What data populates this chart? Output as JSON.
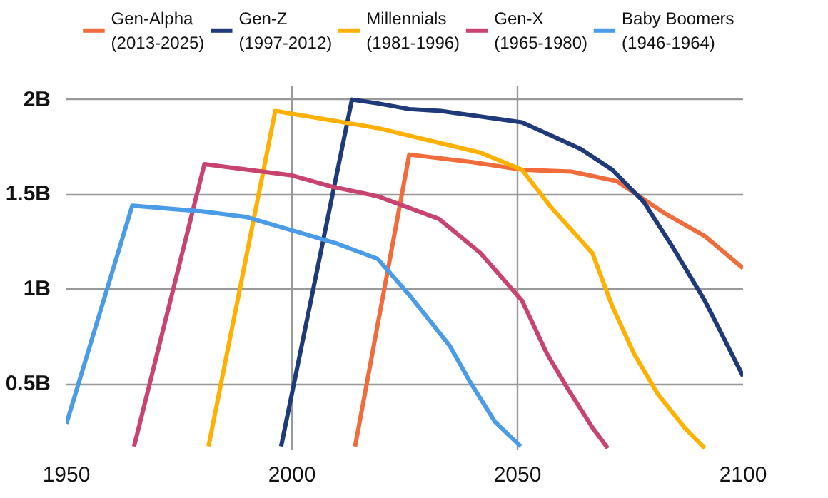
{
  "chart_data": {
    "type": "line",
    "xlim": [
      1950,
      2100
    ],
    "ylim": [
      0.15,
      2.07
    ],
    "xticks": [
      1950,
      2000,
      2050,
      2100
    ],
    "yticks": [
      {
        "value": 0.5,
        "label": "0.5B"
      },
      {
        "value": 1,
        "label": "1B"
      },
      {
        "value": 1.5,
        "label": "1.5B"
      },
      {
        "value": 2,
        "label": "2B"
      }
    ],
    "grid": true,
    "legend": "top",
    "line_style": "solid",
    "marker": "none",
    "series": [
      {
        "name": "Gen-Alpha\n(2013-2025)",
        "color": "#f26b3a",
        "x": [
          2014,
          2026,
          2040,
          2051,
          2062,
          2072,
          2082.6,
          2091.5,
          2100
        ],
        "values": [
          0.17,
          1.71,
          1.67,
          1.63,
          1.62,
          1.57,
          1.4,
          1.28,
          1.11
        ]
      },
      {
        "name": "Gen-Z\n(1997-2012)",
        "color": "#1f3a7a",
        "x": [
          1997.6,
          2013.3,
          2019,
          2026,
          2033,
          2051,
          2064,
          2071,
          2078,
          2084.7,
          2091.5,
          2100
        ],
        "values": [
          0.17,
          2.0,
          1.98,
          1.95,
          1.94,
          1.88,
          1.74,
          1.63,
          1.46,
          1.21,
          0.94,
          0.54
        ]
      },
      {
        "name": "Millennials\n(1981-1996)",
        "color": "#ffb000",
        "x": [
          1981.5,
          1996.3,
          2019,
          2026,
          2041.8,
          2051,
          2057.5,
          2066.6,
          2071,
          2075.8,
          2081,
          2087,
          2091.5
        ],
        "values": [
          0.17,
          1.94,
          1.85,
          1.81,
          1.72,
          1.63,
          1.43,
          1.19,
          0.91,
          0.66,
          0.45,
          0.27,
          0.16
        ]
      },
      {
        "name": "Gen-X\n(1965-1980)",
        "color": "#c8446e",
        "x": [
          1965,
          1980.6,
          2000,
          2009,
          2019,
          2032.6,
          2041.8,
          2051,
          2056.5,
          2061,
          2066.6,
          2070
        ],
        "values": [
          0.17,
          1.66,
          1.6,
          1.54,
          1.49,
          1.37,
          1.19,
          0.94,
          0.66,
          0.48,
          0.27,
          0.16
        ]
      },
      {
        "name": "Baby Boomers\n(1946-1964)",
        "color": "#4a9be8",
        "x": [
          1950,
          1964.6,
          1980,
          1990,
          2000,
          2010,
          2019,
          2026,
          2030,
          2035,
          2039.5,
          2045,
          2050.7
        ],
        "values": [
          0.29,
          1.44,
          1.41,
          1.38,
          1.31,
          1.24,
          1.16,
          0.97,
          0.85,
          0.7,
          0.51,
          0.3,
          0.17
        ]
      }
    ]
  }
}
